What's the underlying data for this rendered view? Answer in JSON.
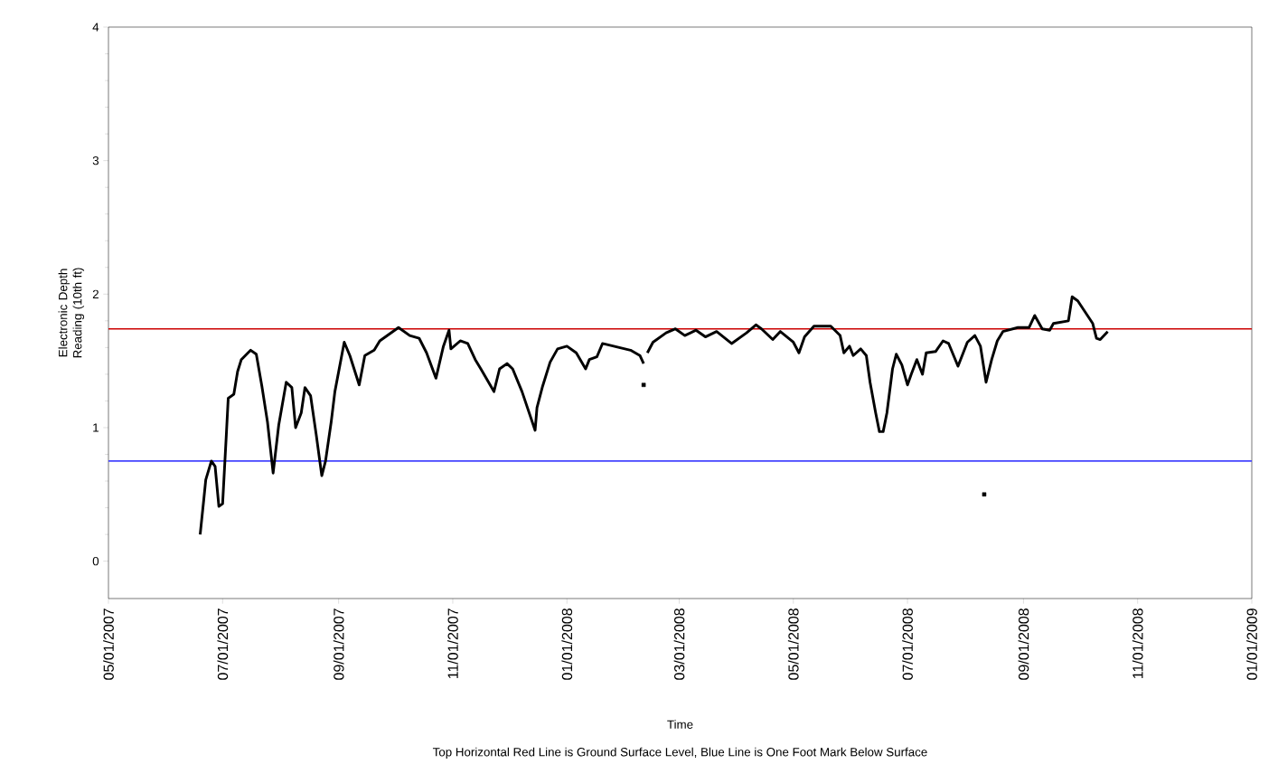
{
  "chart_data": {
    "type": "line",
    "xlabel": "Time",
    "ylabel": "Electronic Depth Reading (10th ft)",
    "annotations": [
      "Top Horizontal Red Line is Ground Surface Level, Blue Line is One Foot Mark Below Surface"
    ],
    "xlim": [
      "2007-05-01",
      "2009-01-01"
    ],
    "xticks": [
      {
        "value": "2007-05-01",
        "label": "05/01/2007"
      },
      {
        "value": "2007-07-01",
        "label": "07/01/2007"
      },
      {
        "value": "2007-09-01",
        "label": "09/01/2007"
      },
      {
        "value": "2007-11-01",
        "label": "11/01/2007"
      },
      {
        "value": "2008-01-01",
        "label": "01/01/2008"
      },
      {
        "value": "2008-03-01",
        "label": "03/01/2008"
      },
      {
        "value": "2008-05-01",
        "label": "05/01/2008"
      },
      {
        "value": "2008-07-01",
        "label": "07/01/2008"
      },
      {
        "value": "2008-09-01",
        "label": "09/01/2008"
      },
      {
        "value": "2008-11-01",
        "label": "11/01/2008"
      },
      {
        "value": "2009-01-01",
        "label": "01/01/2009"
      }
    ],
    "ylim": [
      -0.28,
      4
    ],
    "yticks": [
      0,
      1,
      2,
      3,
      4
    ],
    "ref_lines": [
      {
        "axis": "y",
        "value": 1.74,
        "color": "#cc0000"
      },
      {
        "axis": "y",
        "value": 0.75,
        "color": "#4444ff"
      }
    ],
    "series": [
      {
        "color": "#000000",
        "marker": "none",
        "x": [
          "2007-06-19",
          "2007-06-21",
          "2007-06-22",
          "2007-06-25",
          "2007-06-27",
          "2007-06-29",
          "2007-07-01",
          "2007-07-03",
          "2007-07-04",
          "2007-07-07",
          "2007-07-09",
          "2007-07-11",
          "2007-07-16",
          "2007-07-19",
          "2007-07-22",
          "2007-07-25",
          "2007-07-28",
          "2007-07-31",
          "2007-08-04",
          "2007-08-07",
          "2007-08-09",
          "2007-08-12",
          "2007-08-14",
          "2007-08-17",
          "2007-08-20",
          "2007-08-23",
          "2007-08-25",
          "2007-08-28",
          "2007-08-30",
          "2007-09-04",
          "2007-09-07",
          "2007-09-12",
          "2007-09-15",
          "2007-09-20",
          "2007-09-23",
          "2007-10-03",
          "2007-10-09",
          "2007-10-14",
          "2007-10-18",
          "2007-10-23",
          "2007-10-27",
          "2007-10-30",
          "2007-10-31",
          "2007-11-05",
          "2007-11-09",
          "2007-11-13",
          "2007-11-16",
          "2007-11-23",
          "2007-11-26",
          "2007-11-30",
          "2007-12-03",
          "2007-12-08",
          "2007-12-15",
          "2007-12-16",
          "2007-12-19",
          "2007-12-23",
          "2007-12-27",
          "2008-01-01",
          "2008-01-06",
          "2008-01-11",
          "2008-01-13",
          "2008-01-17",
          "2008-01-20",
          "2008-01-26",
          "2008-02-04",
          "2008-02-09",
          "2008-02-11",
          "2008-02-12",
          "2008-02-13",
          "2008-02-16",
          "2008-02-23",
          "2008-02-28",
          "2008-03-04",
          "2008-03-10",
          "2008-03-15",
          "2008-03-21",
          "2008-03-29",
          "2008-04-06",
          "2008-04-11",
          "2008-04-14",
          "2008-04-20",
          "2008-04-24",
          "2008-05-01",
          "2008-05-04",
          "2008-05-07",
          "2008-05-12",
          "2008-05-21",
          "2008-05-26",
          "2008-05-28",
          "2008-05-31",
          "2008-06-02",
          "2008-06-06",
          "2008-06-09",
          "2008-06-11",
          "2008-06-14",
          "2008-06-16",
          "2008-06-18",
          "2008-06-20",
          "2008-06-23",
          "2008-06-25",
          "2008-06-28",
          "2008-07-01",
          "2008-07-03",
          "2008-07-06",
          "2008-07-09",
          "2008-07-11",
          "2008-07-16",
          "2008-07-20",
          "2008-07-23",
          "2008-07-28",
          "2008-08-02",
          "2008-08-06",
          "2008-08-09",
          "2008-08-12",
          "2008-08-15",
          "2008-08-18",
          "2008-08-21",
          "2008-08-29",
          "2008-09-04",
          "2008-09-07",
          "2008-09-11",
          "2008-09-15",
          "2008-09-17",
          "2008-09-25",
          "2008-09-27",
          "2008-09-30",
          "2008-10-08",
          "2008-10-10",
          "2008-10-12",
          "2008-10-16"
        ],
        "values": [
          0.2,
          0.47,
          0.61,
          0.75,
          0.71,
          0.41,
          0.43,
          0.95,
          1.22,
          1.25,
          1.42,
          1.51,
          1.58,
          1.55,
          1.31,
          1.04,
          0.66,
          1.02,
          1.34,
          1.3,
          1.0,
          1.11,
          1.3,
          1.24,
          0.95,
          0.64,
          0.75,
          1.04,
          1.27,
          1.64,
          1.54,
          1.32,
          1.54,
          1.58,
          1.65,
          1.75,
          1.69,
          1.67,
          1.56,
          1.37,
          1.61,
          1.73,
          1.59,
          1.65,
          1.63,
          1.51,
          1.44,
          1.27,
          1.44,
          1.48,
          1.44,
          1.27,
          0.98,
          1.15,
          1.31,
          1.49,
          1.59,
          1.61,
          1.56,
          1.44,
          1.51,
          1.53,
          1.63,
          1.61,
          1.58,
          1.54,
          1.48,
          null,
          1.56,
          1.64,
          1.71,
          1.74,
          1.69,
          1.73,
          1.68,
          1.72,
          1.63,
          1.71,
          1.77,
          1.74,
          1.66,
          1.72,
          1.64,
          1.56,
          1.68,
          1.76,
          1.76,
          1.69,
          1.56,
          1.61,
          1.54,
          1.59,
          1.54,
          1.34,
          1.11,
          0.97,
          0.97,
          1.11,
          1.44,
          1.55,
          1.47,
          1.32,
          1.4,
          1.51,
          1.4,
          1.56,
          1.57,
          1.65,
          1.63,
          1.46,
          1.64,
          1.69,
          1.61,
          1.34,
          1.51,
          1.65,
          1.72,
          1.75,
          1.75,
          1.84,
          1.74,
          1.73,
          1.78,
          1.8,
          1.98,
          1.95,
          1.78,
          1.67,
          1.66,
          1.72
        ]
      },
      {
        "type": "scatter",
        "color": "#000000",
        "marker": "square",
        "x": [
          "2008-02-11",
          "2008-08-11"
        ],
        "values": [
          1.32,
          0.5
        ]
      }
    ]
  }
}
